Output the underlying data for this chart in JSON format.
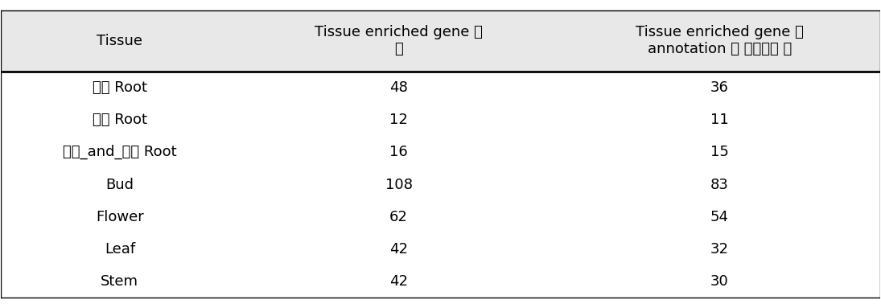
{
  "col_headers": [
    "Tissue",
    "Tissue enriched gene 의\n수",
    "Tissue enriched gene 중\nannotation 된 유전자의 수"
  ],
  "rows": [
    [
      "곸울 Root",
      "48",
      "36"
    ],
    [
      "나름 Root",
      "12",
      "11"
    ],
    [
      "나름_and_곸울 Root",
      "16",
      "15"
    ],
    [
      "Bud",
      "108",
      "83"
    ],
    [
      "Flower",
      "62",
      "54"
    ],
    [
      "Leaf",
      "42",
      "32"
    ],
    [
      "Stem",
      "42",
      "30"
    ]
  ],
  "header_color": "#e8e8e8",
  "bg_color": "#ffffff",
  "font_size": 13,
  "header_font_size": 13,
  "figsize": [
    10.95,
    3.83
  ],
  "dpi": 100,
  "col_starts": [
    0.0,
    0.27,
    0.635
  ],
  "col_ends": [
    0.27,
    0.635,
    1.0
  ]
}
